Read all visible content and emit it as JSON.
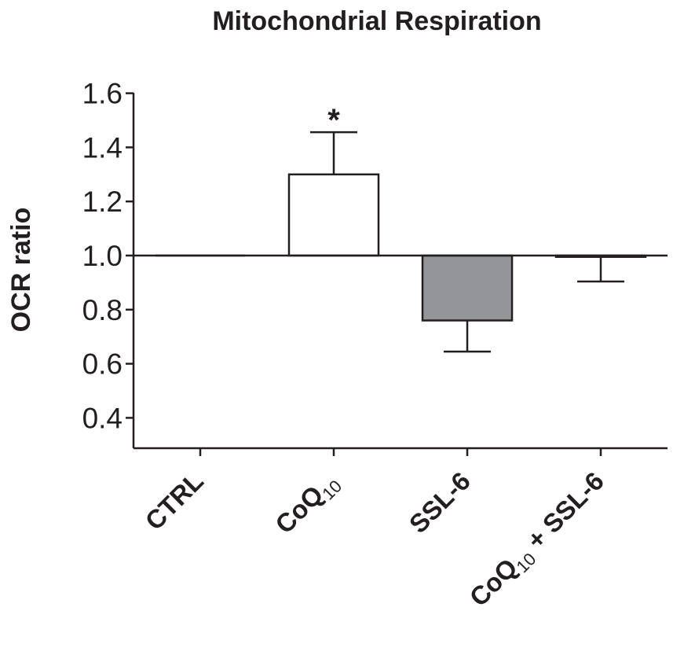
{
  "chart_data": {
    "type": "bar",
    "title": "Mitochondrial Respiration",
    "xlabel": "",
    "ylabel": "OCR ratio",
    "ylim": [
      0.27,
      1.6
    ],
    "baseline": 1.0,
    "yticks": [
      "0.4",
      "0.6",
      "0.8",
      "1.0",
      "1.2",
      "1.4",
      "1.6"
    ],
    "categories": [
      {
        "main": "CTRL",
        "sub": "",
        "rest": ""
      },
      {
        "main": "CoQ",
        "sub": "10",
        "rest": ""
      },
      {
        "main": "SSL-6",
        "sub": "",
        "rest": ""
      },
      {
        "main": "CoQ",
        "sub": "10",
        "rest": " + SSL-6"
      }
    ],
    "values": [
      1.0,
      1.3,
      0.76,
      0.995
    ],
    "errors": [
      0,
      0.156,
      0.115,
      0.091
    ],
    "fill_colors": [
      "#ffffff",
      "#ffffff",
      "#939598",
      "#ffffff"
    ],
    "annotations": [
      "",
      "*",
      "",
      ""
    ],
    "grid": false
  }
}
